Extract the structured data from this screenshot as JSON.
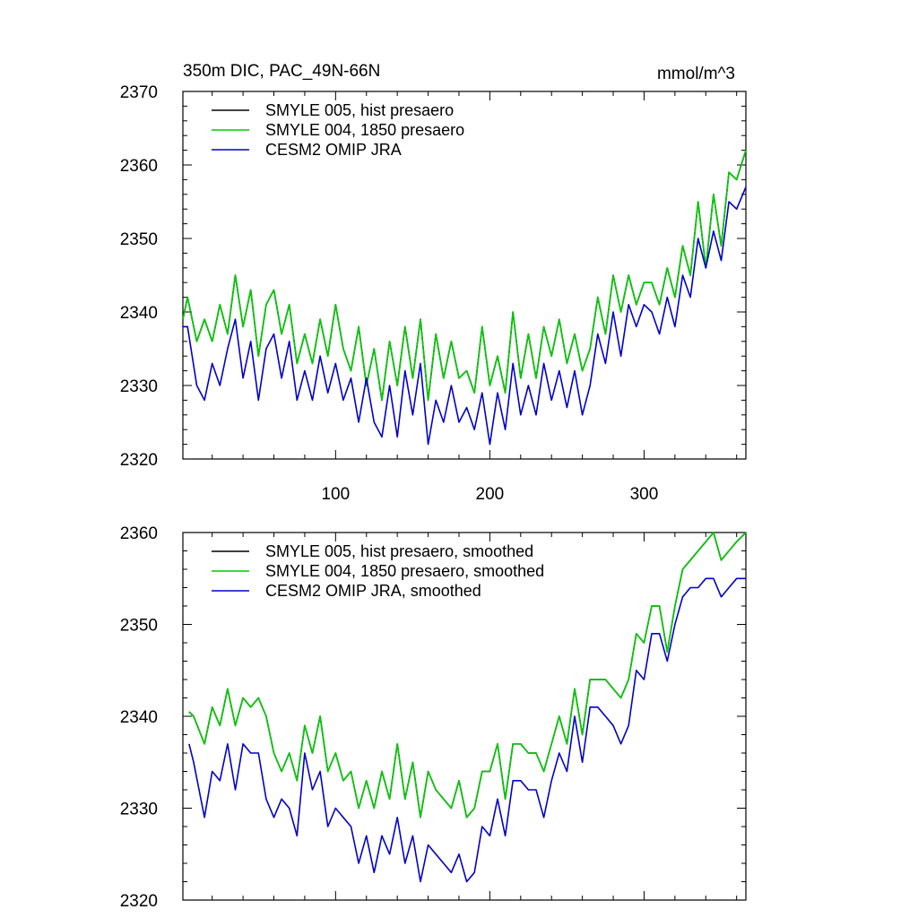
{
  "chart_data": [
    {
      "type": "line",
      "title_left": "350m DIC, PAC_49N-66N",
      "title_right": "mmol/m^3",
      "xlim": [
        1,
        366
      ],
      "ylim": [
        2320,
        2370
      ],
      "x_tick_labels": [
        "100",
        "200",
        "300"
      ],
      "x_ticks": [
        100,
        200,
        300
      ],
      "y_tick_labels": [
        "2320",
        "2330",
        "2340",
        "2350",
        "2360",
        "2370"
      ],
      "y_ticks": [
        2320,
        2330,
        2340,
        2350,
        2360,
        2370
      ],
      "series": [
        {
          "name": "SMYLE 005, hist presaero",
          "color": "#000000",
          "x": [
            1,
            4,
            10,
            15,
            20,
            25,
            30,
            35,
            40,
            45,
            50,
            55,
            60,
            65,
            70,
            75,
            80,
            85,
            90,
            95,
            100,
            105,
            110,
            115,
            120,
            125,
            130,
            135,
            140,
            145,
            150,
            155,
            160,
            165,
            170,
            175,
            180,
            185,
            190,
            195,
            200,
            205,
            210,
            215,
            220,
            225,
            230,
            235,
            240,
            245,
            250,
            255,
            260,
            265,
            270,
            275,
            280,
            285,
            290,
            295,
            300,
            305,
            310,
            315,
            320,
            325,
            330,
            335,
            340,
            345,
            350,
            355,
            360,
            366
          ],
          "y": [
            2339,
            2342,
            2336,
            2339,
            2336,
            2341,
            2337,
            2345,
            2338,
            2343,
            2334,
            2341,
            2343,
            2337,
            2341,
            2333,
            2337,
            2333,
            2339,
            2334,
            2341,
            2335,
            2332,
            2338,
            2330,
            2335,
            2328,
            2336,
            2330,
            2338,
            2331,
            2339,
            2328,
            2337,
            2331,
            2336,
            2331,
            2332,
            2329,
            2338,
            2330,
            2334,
            2329,
            2340,
            2331,
            2337,
            2331,
            2338,
            2334,
            2339,
            2333,
            2337,
            2332,
            2335,
            2342,
            2337,
            2345,
            2340,
            2345,
            2341,
            2344,
            2344,
            2341,
            2346,
            2342,
            2349,
            2345,
            2355,
            2346,
            2356,
            2349,
            2359,
            2358,
            2362
          ]
        },
        {
          "name": "SMYLE 004, 1850 presaero",
          "color": "#00cc00",
          "x": [
            1,
            4,
            10,
            15,
            20,
            25,
            30,
            35,
            40,
            45,
            50,
            55,
            60,
            65,
            70,
            75,
            80,
            85,
            90,
            95,
            100,
            105,
            110,
            115,
            120,
            125,
            130,
            135,
            140,
            145,
            150,
            155,
            160,
            165,
            170,
            175,
            180,
            185,
            190,
            195,
            200,
            205,
            210,
            215,
            220,
            225,
            230,
            235,
            240,
            245,
            250,
            255,
            260,
            265,
            270,
            275,
            280,
            285,
            290,
            295,
            300,
            305,
            310,
            315,
            320,
            325,
            330,
            335,
            340,
            345,
            350,
            355,
            360,
            366
          ],
          "y": [
            2339,
            2342,
            2336,
            2339,
            2336,
            2341,
            2337,
            2345,
            2338,
            2343,
            2334,
            2341,
            2343,
            2337,
            2341,
            2333,
            2337,
            2333,
            2339,
            2334,
            2341,
            2335,
            2332,
            2338,
            2330,
            2335,
            2328,
            2336,
            2330,
            2338,
            2331,
            2339,
            2328,
            2337,
            2331,
            2336,
            2331,
            2332,
            2329,
            2338,
            2330,
            2334,
            2329,
            2340,
            2331,
            2337,
            2331,
            2338,
            2334,
            2339,
            2333,
            2337,
            2332,
            2335,
            2342,
            2337,
            2345,
            2340,
            2345,
            2341,
            2344,
            2344,
            2341,
            2346,
            2342,
            2349,
            2345,
            2355,
            2346,
            2356,
            2349,
            2359,
            2358,
            2362
          ]
        },
        {
          "name": "CESM2 OMIP JRA",
          "color": "#0000cc",
          "x": [
            1,
            4,
            10,
            15,
            20,
            25,
            30,
            35,
            40,
            45,
            50,
            55,
            60,
            65,
            70,
            75,
            80,
            85,
            90,
            95,
            100,
            105,
            110,
            115,
            120,
            125,
            130,
            135,
            140,
            145,
            150,
            155,
            160,
            165,
            170,
            175,
            180,
            185,
            190,
            195,
            200,
            205,
            210,
            215,
            220,
            225,
            230,
            235,
            240,
            245,
            250,
            255,
            260,
            265,
            270,
            275,
            280,
            285,
            290,
            295,
            300,
            305,
            310,
            315,
            320,
            325,
            330,
            335,
            340,
            345,
            350,
            355,
            360,
            366
          ],
          "y": [
            2338,
            2338,
            2330,
            2328,
            2333,
            2330,
            2335,
            2339,
            2331,
            2336,
            2328,
            2335,
            2337,
            2331,
            2336,
            2328,
            2332,
            2328,
            2334,
            2329,
            2333,
            2328,
            2331,
            2325,
            2331,
            2325,
            2323,
            2330,
            2323,
            2332,
            2326,
            2333,
            2322,
            2328,
            2325,
            2330,
            2325,
            2327,
            2324,
            2329,
            2322,
            2329,
            2324,
            2333,
            2326,
            2330,
            2326,
            2333,
            2328,
            2332,
            2327,
            2332,
            2326,
            2330,
            2337,
            2333,
            2340,
            2334,
            2341,
            2338,
            2341,
            2340,
            2337,
            2342,
            2338,
            2345,
            2342,
            2350,
            2346,
            2351,
            2347,
            2355,
            2354,
            2357
          ]
        }
      ]
    },
    {
      "type": "line",
      "xlim": [
        1,
        366
      ],
      "ylim": [
        2320,
        2360
      ],
      "x_ticks": [
        100,
        200,
        300
      ],
      "y_tick_labels": [
        "2320",
        "2330",
        "2340",
        "2350",
        "2360"
      ],
      "y_ticks": [
        2320,
        2330,
        2340,
        2350,
        2360
      ],
      "series": [
        {
          "name": "SMYLE 005, hist presaero, smoothed",
          "color": "#000000",
          "x": [
            5,
            8,
            15,
            20,
            25,
            30,
            35,
            40,
            45,
            50,
            55,
            60,
            65,
            70,
            75,
            80,
            85,
            90,
            95,
            100,
            105,
            110,
            115,
            120,
            125,
            130,
            135,
            140,
            145,
            150,
            155,
            160,
            165,
            170,
            175,
            180,
            185,
            190,
            195,
            200,
            205,
            210,
            215,
            220,
            225,
            230,
            235,
            240,
            245,
            250,
            255,
            260,
            265,
            270,
            275,
            280,
            285,
            290,
            295,
            300,
            305,
            310,
            315,
            320,
            325,
            330,
            335,
            340,
            345,
            350,
            355,
            360,
            366
          ],
          "y": [
            2340.5,
            2340,
            2337,
            2341,
            2339,
            2343,
            2339,
            2342,
            2341,
            2342,
            2340,
            2336,
            2334,
            2336,
            2333,
            2339,
            2336,
            2340,
            2334,
            2336,
            2333,
            2334,
            2330,
            2333,
            2330,
            2334,
            2331,
            2337,
            2331,
            2335,
            2329,
            2334,
            2332,
            2331,
            2330,
            2333,
            2329,
            2330,
            2334,
            2334,
            2337,
            2331,
            2337,
            2337,
            2336,
            2336,
            2334,
            2337,
            2340,
            2337,
            2343,
            2338,
            2344,
            2344,
            2344,
            2343,
            2342,
            2344,
            2349,
            2348,
            2352,
            2352,
            2347,
            2352,
            2356,
            2357,
            2358,
            2359,
            2360,
            2357,
            2358,
            2359,
            2360
          ]
        },
        {
          "name": "SMYLE 004, 1850 presaero, smoothed",
          "color": "#00cc00",
          "x": [
            5,
            8,
            15,
            20,
            25,
            30,
            35,
            40,
            45,
            50,
            55,
            60,
            65,
            70,
            75,
            80,
            85,
            90,
            95,
            100,
            105,
            110,
            115,
            120,
            125,
            130,
            135,
            140,
            145,
            150,
            155,
            160,
            165,
            170,
            175,
            180,
            185,
            190,
            195,
            200,
            205,
            210,
            215,
            220,
            225,
            230,
            235,
            240,
            245,
            250,
            255,
            260,
            265,
            270,
            275,
            280,
            285,
            290,
            295,
            300,
            305,
            310,
            315,
            320,
            325,
            330,
            335,
            340,
            345,
            350,
            355,
            360,
            366
          ],
          "y": [
            2340.5,
            2340,
            2337,
            2341,
            2339,
            2343,
            2339,
            2342,
            2341,
            2342,
            2340,
            2336,
            2334,
            2336,
            2333,
            2339,
            2336,
            2340,
            2334,
            2336,
            2333,
            2334,
            2330,
            2333,
            2330,
            2334,
            2331,
            2337,
            2331,
            2335,
            2329,
            2334,
            2332,
            2331,
            2330,
            2333,
            2329,
            2330,
            2334,
            2334,
            2337,
            2331,
            2337,
            2337,
            2336,
            2336,
            2334,
            2337,
            2340,
            2337,
            2343,
            2338,
            2344,
            2344,
            2344,
            2343,
            2342,
            2344,
            2349,
            2348,
            2352,
            2352,
            2347,
            2352,
            2356,
            2357,
            2358,
            2359,
            2360,
            2357,
            2358,
            2359,
            2360
          ]
        },
        {
          "name": "CESM2 OMIP JRA, smoothed",
          "color": "#0000cc",
          "x": [
            5,
            8,
            15,
            20,
            25,
            30,
            35,
            40,
            45,
            50,
            55,
            60,
            65,
            70,
            75,
            80,
            85,
            90,
            95,
            100,
            105,
            110,
            115,
            120,
            125,
            130,
            135,
            140,
            145,
            150,
            155,
            160,
            165,
            170,
            175,
            180,
            185,
            190,
            195,
            200,
            205,
            210,
            215,
            220,
            225,
            230,
            235,
            240,
            245,
            250,
            255,
            260,
            265,
            270,
            275,
            280,
            285,
            290,
            295,
            300,
            305,
            310,
            315,
            320,
            325,
            330,
            335,
            340,
            345,
            350,
            355,
            360,
            366
          ],
          "y": [
            2337,
            2335,
            2329,
            2334,
            2333,
            2337,
            2332,
            2337,
            2336,
            2336,
            2331,
            2329,
            2331,
            2330,
            2327,
            2336,
            2332,
            2334,
            2328,
            2330,
            2329,
            2328,
            2324,
            2327,
            2323,
            2327,
            2325,
            2329,
            2324,
            2327,
            2322,
            2326,
            2325,
            2324,
            2323,
            2325,
            2322,
            2323,
            2328,
            2327,
            2331,
            2327,
            2333,
            2333,
            2332,
            2332,
            2329,
            2333,
            2336,
            2334,
            2340,
            2335,
            2341,
            2341,
            2340,
            2339,
            2337,
            2339,
            2345,
            2344,
            2349,
            2349,
            2346,
            2350,
            2353,
            2354,
            2354,
            2355,
            2355,
            2353,
            2354,
            2355,
            2355
          ]
        }
      ]
    }
  ]
}
